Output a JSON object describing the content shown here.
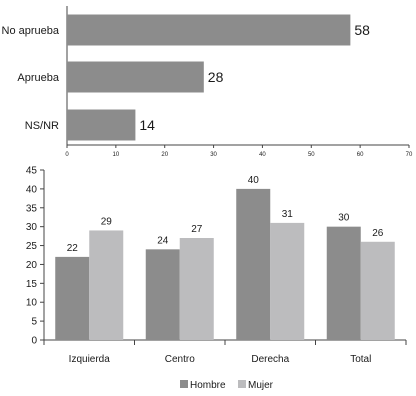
{
  "chart_data": [
    {
      "type": "bar",
      "orientation": "horizontal",
      "categories": [
        "No aprueba",
        "Aprueba",
        "NS/NR"
      ],
      "values": [
        58,
        28,
        14
      ],
      "xlim": [
        0,
        70
      ],
      "xticks": [
        0,
        10,
        20,
        30,
        40,
        50,
        60,
        70
      ],
      "colors": {
        "bar": "#8c8c8c"
      },
      "grid": false
    },
    {
      "type": "bar",
      "categories": [
        "Izquierda",
        "Centro",
        "Derecha",
        "Total"
      ],
      "series": [
        {
          "name": "Hombre",
          "values": [
            22,
            24,
            40,
            30
          ]
        },
        {
          "name": "Mujer",
          "values": [
            29,
            27,
            31,
            26
          ]
        }
      ],
      "ylim": [
        0,
        45
      ],
      "yticks": [
        0,
        5,
        10,
        15,
        20,
        25,
        30,
        35,
        40,
        45
      ],
      "legend": "bottom",
      "colors": {
        "Hombre": "#8c8c8c",
        "Mujer": "#bcbcbe"
      },
      "grid": false
    }
  ]
}
